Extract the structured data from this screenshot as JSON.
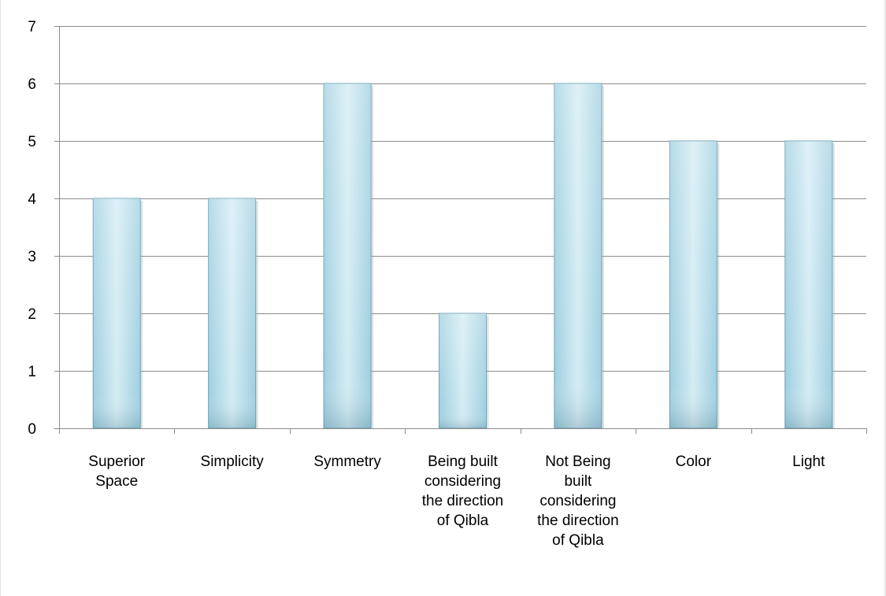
{
  "chart_data": {
    "type": "bar",
    "categories": [
      [
        "Superior",
        "Space"
      ],
      [
        "Simplicity"
      ],
      [
        "Symmetry"
      ],
      [
        "Being built",
        "considering",
        "the direction",
        "of Qibla"
      ],
      [
        "Not Being",
        "built",
        "considering",
        "the direction",
        "of Qibla"
      ],
      [
        "Color"
      ],
      [
        "Light"
      ]
    ],
    "values": [
      4,
      4,
      6,
      2,
      6,
      5,
      5
    ],
    "title": "",
    "xlabel": "",
    "ylabel": "",
    "ylim": [
      0,
      7
    ],
    "yticks": [
      "0",
      "1",
      "2",
      "3",
      "4",
      "5",
      "6",
      "7"
    ],
    "grid": true,
    "legend": "none",
    "colors": {
      "bar_top": "#d4ecf4",
      "bar_mid": "#9fcfe0",
      "bar_edge": "#6ea2b5",
      "grid": "#8c8c8c",
      "axis": "#8c8c8c"
    }
  }
}
